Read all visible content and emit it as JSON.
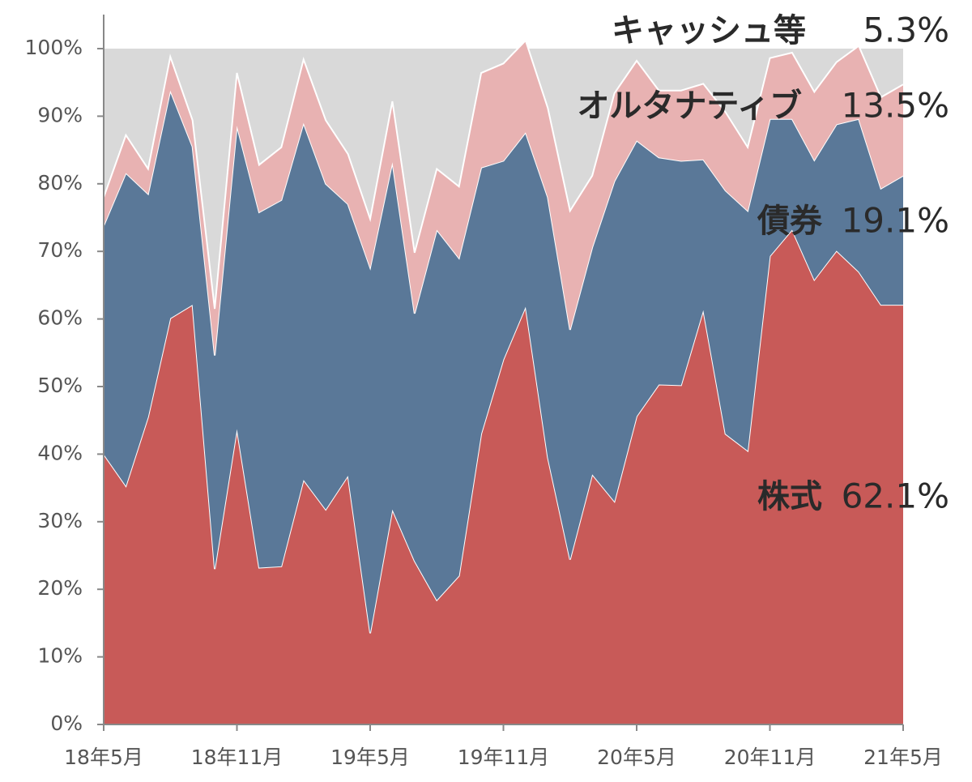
{
  "chart_data": {
    "type": "stacked-area",
    "categories": [
      "18年5月",
      null,
      null,
      null,
      null,
      null,
      "18年11月",
      null,
      null,
      null,
      null,
      null,
      "19年5月",
      null,
      null,
      null,
      null,
      null,
      "19年11月",
      null,
      null,
      null,
      null,
      null,
      "20年5月",
      null,
      null,
      null,
      null,
      null,
      "20年11月",
      null,
      null,
      null,
      null,
      null,
      "21年5月"
    ],
    "series": [
      {
        "name": "株式",
        "color": "#c85a58",
        "values": [
          40.0,
          35.3,
          45.5,
          60.1,
          62.1,
          23.0,
          43.7,
          23.2,
          23.4,
          36.2,
          31.8,
          36.8,
          13.5,
          31.8,
          24.2,
          18.4,
          22.0,
          43.0,
          54.0,
          61.8,
          39.5,
          24.4,
          37.0,
          33.0,
          45.6,
          50.3,
          50.2,
          61.3,
          43.0,
          40.5,
          69.3,
          73.2,
          65.8,
          70.1,
          67.0,
          62.1,
          62.1
        ]
      },
      {
        "name": "債券",
        "color": "#5a7898",
        "values": [
          33.8,
          46.3,
          33.0,
          33.7,
          23.4,
          31.6,
          44.9,
          52.6,
          54.2,
          52.8,
          48.2,
          40.2,
          54.1,
          51.4,
          36.6,
          54.8,
          47.0,
          39.4,
          29.4,
          25.8,
          38.5,
          34.0,
          33.6,
          47.4,
          40.8,
          33.6,
          33.2,
          22.3,
          36.0,
          35.5,
          20.3,
          16.4,
          17.7,
          18.7,
          22.6,
          17.2,
          19.1
        ]
      },
      {
        "name": "オルタナティブ",
        "color": "#e8b2b2",
        "values": [
          4.2,
          5.6,
          3.7,
          5.0,
          3.9,
          6.9,
          7.8,
          7.0,
          7.8,
          9.4,
          9.4,
          7.4,
          7.2,
          9.0,
          9.0,
          9.0,
          10.6,
          14.0,
          14.4,
          13.6,
          13.2,
          17.6,
          10.6,
          13.0,
          11.8,
          9.9,
          10.4,
          11.2,
          11.6,
          9.4,
          9.0,
          9.8,
          10.1,
          9.2,
          10.8,
          13.5,
          13.5
        ]
      }
    ],
    "background_color": "#d9d9d9",
    "ylim": [
      0,
      100
    ],
    "yticks": [
      {
        "value": 0,
        "label": "0%"
      },
      {
        "value": 10,
        "label": "10%"
      },
      {
        "value": 20,
        "label": "20%"
      },
      {
        "value": 30,
        "label": "30%"
      },
      {
        "value": 40,
        "label": "40%"
      },
      {
        "value": 50,
        "label": "50%"
      },
      {
        "value": 60,
        "label": "60%"
      },
      {
        "value": 70,
        "label": "70%"
      },
      {
        "value": 80,
        "label": "80%"
      },
      {
        "value": 90,
        "label": "90%"
      },
      {
        "value": 100,
        "label": "100%"
      }
    ],
    "annotations": [
      {
        "label": "キャッシュ等",
        "value": "5.3%"
      },
      {
        "label": "オルタナティブ",
        "value": "13.5%"
      },
      {
        "label": "債券",
        "value": "19.1%"
      },
      {
        "label": "株式",
        "value": "62.1%"
      }
    ]
  }
}
